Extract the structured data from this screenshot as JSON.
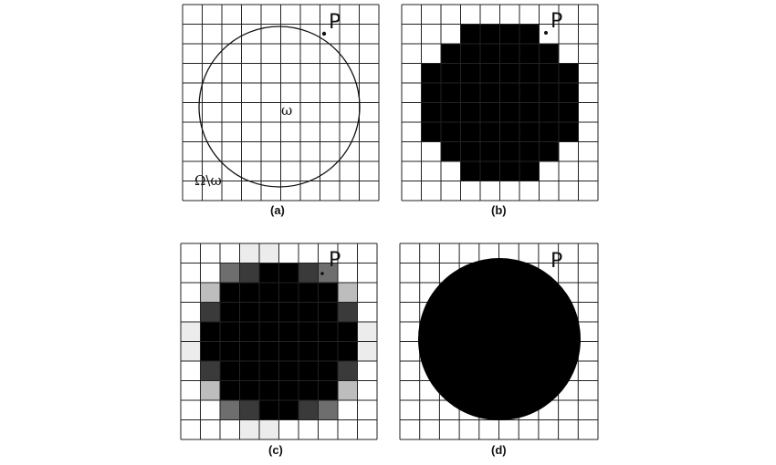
{
  "panels": [
    {
      "id": "a",
      "caption": "(a)",
      "point_label": "P",
      "inner_label": "ω",
      "outer_label": "Ω\\ω"
    },
    {
      "id": "b",
      "caption": "(b)",
      "point_label": "P"
    },
    {
      "id": "c",
      "caption": "(c)",
      "point_label": "P"
    },
    {
      "id": "d",
      "caption": "(d)",
      "point_label": "P"
    }
  ],
  "colors": {
    "grid_line": "#222222",
    "fill_black": "#000000",
    "background": "#ffffff",
    "gray_dark": "#3a3a3a",
    "gray_mid": "#6e6e6e",
    "gray_light": "#bdbdbd",
    "gray_faint": "#ececec"
  },
  "grid": {
    "columns": 10,
    "rows": 10
  },
  "panel_b_filled_columns_per_row": [
    [],
    [
      3,
      4,
      5,
      6
    ],
    [
      2,
      3,
      4,
      5,
      6,
      7
    ],
    [
      1,
      2,
      3,
      4,
      5,
      6,
      7,
      8
    ],
    [
      1,
      2,
      3,
      4,
      5,
      6,
      7,
      8
    ],
    [
      1,
      2,
      3,
      4,
      5,
      6,
      7,
      8
    ],
    [
      1,
      2,
      3,
      4,
      5,
      6,
      7,
      8
    ],
    [
      2,
      3,
      4,
      5,
      6,
      7
    ],
    [
      3,
      4,
      5,
      6
    ],
    []
  ],
  "panel_c_gray_levels_per_row": [
    [
      0,
      0,
      0,
      0.1,
      0.1,
      0,
      0,
      0,
      0,
      0
    ],
    [
      0,
      0,
      0.55,
      0.85,
      1,
      1,
      0.85,
      0.55,
      0,
      0
    ],
    [
      0,
      0.4,
      1,
      1,
      1,
      1,
      1,
      1,
      0.4,
      0
    ],
    [
      0,
      0.8,
      1,
      1,
      1,
      1,
      1,
      1,
      0.8,
      0
    ],
    [
      0.08,
      1,
      1,
      1,
      1,
      1,
      1,
      1,
      1,
      0.08
    ],
    [
      0.08,
      1,
      1,
      1,
      1,
      1,
      1,
      1,
      1,
      0.08
    ],
    [
      0,
      0.8,
      1,
      1,
      1,
      1,
      1,
      1,
      0.8,
      0
    ],
    [
      0,
      0.4,
      1,
      1,
      1,
      1,
      1,
      1,
      0.4,
      0
    ],
    [
      0,
      0,
      0.55,
      0.85,
      1,
      1,
      0.85,
      0.55,
      0,
      0
    ],
    [
      0,
      0,
      0,
      0.1,
      0.1,
      0,
      0,
      0,
      0,
      0
    ]
  ]
}
